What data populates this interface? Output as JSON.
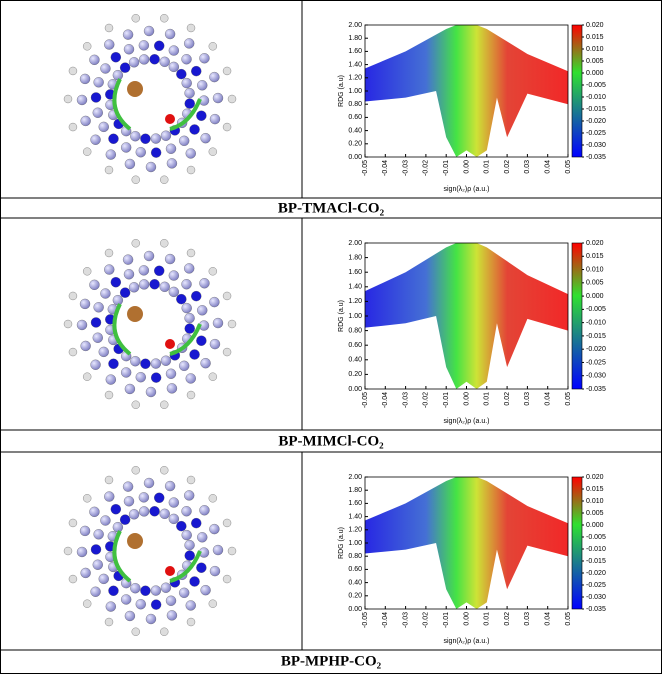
{
  "panels": [
    {
      "caption": "BP-TMACl-CO₂",
      "chart": {
        "type": "scatter",
        "xlabel": "sign(λ₂)ρ (a.u.)",
        "ylabel": "RDG (a.u)",
        "xlim": [
          -0.05,
          0.05
        ],
        "ylim": [
          0,
          2
        ],
        "xticks": [
          {
            "value": -0.05,
            "label": "-0.05"
          },
          {
            "value": -0.04,
            "label": "-0.04"
          },
          {
            "value": -0.03,
            "label": "-0.03"
          },
          {
            "value": -0.02,
            "label": "-0.02"
          },
          {
            "value": -0.01,
            "label": "-0.01"
          },
          {
            "value": 0,
            "label": "0.00"
          },
          {
            "value": 0.01,
            "label": "0.01"
          },
          {
            "value": 0.02,
            "label": "0.02"
          },
          {
            "value": 0.03,
            "label": "0.03"
          },
          {
            "value": 0.04,
            "label": "0.04"
          },
          {
            "value": 0.05,
            "label": "0.05"
          }
        ],
        "yticks": [
          {
            "value": 0,
            "label": "0.00"
          },
          {
            "value": 0.2,
            "label": "0.20"
          },
          {
            "value": 0.4,
            "label": "0.40"
          },
          {
            "value": 0.6,
            "label": "0.60"
          },
          {
            "value": 0.8,
            "label": "0.80"
          },
          {
            "value": 1,
            "label": "1.00"
          },
          {
            "value": 1.2,
            "label": "1.20"
          },
          {
            "value": 1.4,
            "label": "1.40"
          },
          {
            "value": 1.6,
            "label": "1.60"
          },
          {
            "value": 1.8,
            "label": "1.80"
          },
          {
            "value": 2,
            "label": "2.00"
          }
        ],
        "colorbar_lim": [
          -0.035,
          0.02
        ],
        "colorbar_ticks": [
          {
            "value": 0.02,
            "label": "0.020"
          },
          {
            "value": 0.015,
            "label": "0.015"
          },
          {
            "value": 0.01,
            "label": "0.010"
          },
          {
            "value": 0.005,
            "label": "0.005"
          },
          {
            "value": 0,
            "label": "0.000"
          },
          {
            "value": -0.005,
            "label": "-0.005"
          },
          {
            "value": -0.01,
            "label": "-0.010"
          },
          {
            "value": -0.015,
            "label": "-0.015"
          },
          {
            "value": -0.02,
            "label": "-0.020"
          },
          {
            "value": -0.025,
            "label": "-0.025"
          },
          {
            "value": -0.03,
            "label": "-0.030"
          },
          {
            "value": -0.035,
            "label": "-0.035"
          }
        ]
      }
    },
    {
      "caption": "BP-MIMCl-CO₂",
      "chart": {
        "type": "scatter",
        "xlabel": "sign(λ₂)ρ (a.u.)",
        "ylabel": "RDG (a.u)",
        "xlim": [
          -0.05,
          0.05
        ],
        "ylim": [
          0,
          2
        ],
        "xticks": [
          {
            "value": -0.05,
            "label": "-0.05"
          },
          {
            "value": -0.04,
            "label": "-0.04"
          },
          {
            "value": -0.03,
            "label": "-0.03"
          },
          {
            "value": -0.02,
            "label": "-0.02"
          },
          {
            "value": -0.01,
            "label": "-0.01"
          },
          {
            "value": 0,
            "label": "0.00"
          },
          {
            "value": 0.01,
            "label": "0.01"
          },
          {
            "value": 0.02,
            "label": "0.02"
          },
          {
            "value": 0.03,
            "label": "0.03"
          },
          {
            "value": 0.04,
            "label": "0.04"
          },
          {
            "value": 0.05,
            "label": "0.05"
          }
        ],
        "yticks": [
          {
            "value": 0,
            "label": "0.00"
          },
          {
            "value": 0.2,
            "label": "0.20"
          },
          {
            "value": 0.4,
            "label": "0.40"
          },
          {
            "value": 0.6,
            "label": "0.60"
          },
          {
            "value": 0.8,
            "label": "0.80"
          },
          {
            "value": 1,
            "label": "1.00"
          },
          {
            "value": 1.2,
            "label": "1.20"
          },
          {
            "value": 1.4,
            "label": "1.40"
          },
          {
            "value": 1.6,
            "label": "1.60"
          },
          {
            "value": 1.8,
            "label": "1.80"
          },
          {
            "value": 2,
            "label": "2.00"
          }
        ],
        "colorbar_lim": [
          -0.035,
          0.02
        ],
        "colorbar_ticks": [
          {
            "value": 0.02,
            "label": "0.020"
          },
          {
            "value": 0.015,
            "label": "0.015"
          },
          {
            "value": 0.01,
            "label": "0.010"
          },
          {
            "value": 0.005,
            "label": "0.005"
          },
          {
            "value": 0,
            "label": "0.000"
          },
          {
            "value": -0.005,
            "label": "-0.005"
          },
          {
            "value": -0.01,
            "label": "-0.010"
          },
          {
            "value": -0.015,
            "label": "-0.015"
          },
          {
            "value": -0.02,
            "label": "-0.020"
          },
          {
            "value": -0.025,
            "label": "-0.025"
          },
          {
            "value": -0.03,
            "label": "-0.030"
          },
          {
            "value": -0.035,
            "label": "-0.035"
          }
        ]
      }
    },
    {
      "caption": "BP-MPHP-CO₂",
      "chart": {
        "type": "scatter",
        "xlabel": "sign(λ₂)ρ (a.u.)",
        "ylabel": "RDG (a.u)",
        "xlim": [
          -0.05,
          0.05
        ],
        "ylim": [
          0,
          2
        ],
        "xticks": [
          {
            "value": -0.05,
            "label": "-0.05"
          },
          {
            "value": -0.04,
            "label": "-0.04"
          },
          {
            "value": -0.03,
            "label": "-0.03"
          },
          {
            "value": -0.02,
            "label": "-0.02"
          },
          {
            "value": -0.01,
            "label": "-0.01"
          },
          {
            "value": 0,
            "label": "0.00"
          },
          {
            "value": 0.01,
            "label": "0.01"
          },
          {
            "value": 0.02,
            "label": "0.02"
          },
          {
            "value": 0.03,
            "label": "0.03"
          },
          {
            "value": 0.04,
            "label": "0.04"
          },
          {
            "value": 0.05,
            "label": "0.05"
          }
        ],
        "yticks": [
          {
            "value": 0,
            "label": "0.00"
          },
          {
            "value": 0.2,
            "label": "0.20"
          },
          {
            "value": 0.4,
            "label": "0.40"
          },
          {
            "value": 0.6,
            "label": "0.60"
          },
          {
            "value": 0.8,
            "label": "0.80"
          },
          {
            "value": 1,
            "label": "1.00"
          },
          {
            "value": 1.2,
            "label": "1.20"
          },
          {
            "value": 1.4,
            "label": "1.40"
          },
          {
            "value": 1.6,
            "label": "1.60"
          },
          {
            "value": 1.8,
            "label": "1.80"
          },
          {
            "value": 2,
            "label": "2.00"
          }
        ],
        "colorbar_lim": [
          -0.035,
          0.02
        ],
        "colorbar_ticks": [
          {
            "value": 0.02,
            "label": "0.020"
          },
          {
            "value": 0.015,
            "label": "0.015"
          },
          {
            "value": 0.01,
            "label": "0.010"
          },
          {
            "value": 0.005,
            "label": "0.005"
          },
          {
            "value": 0,
            "label": "0.000"
          },
          {
            "value": -0.005,
            "label": "-0.005"
          },
          {
            "value": -0.01,
            "label": "-0.010"
          },
          {
            "value": -0.015,
            "label": "-0.015"
          },
          {
            "value": -0.02,
            "label": "-0.020"
          },
          {
            "value": -0.025,
            "label": "-0.025"
          },
          {
            "value": -0.03,
            "label": "-0.030"
          },
          {
            "value": -0.035,
            "label": "-0.035"
          }
        ]
      }
    }
  ]
}
